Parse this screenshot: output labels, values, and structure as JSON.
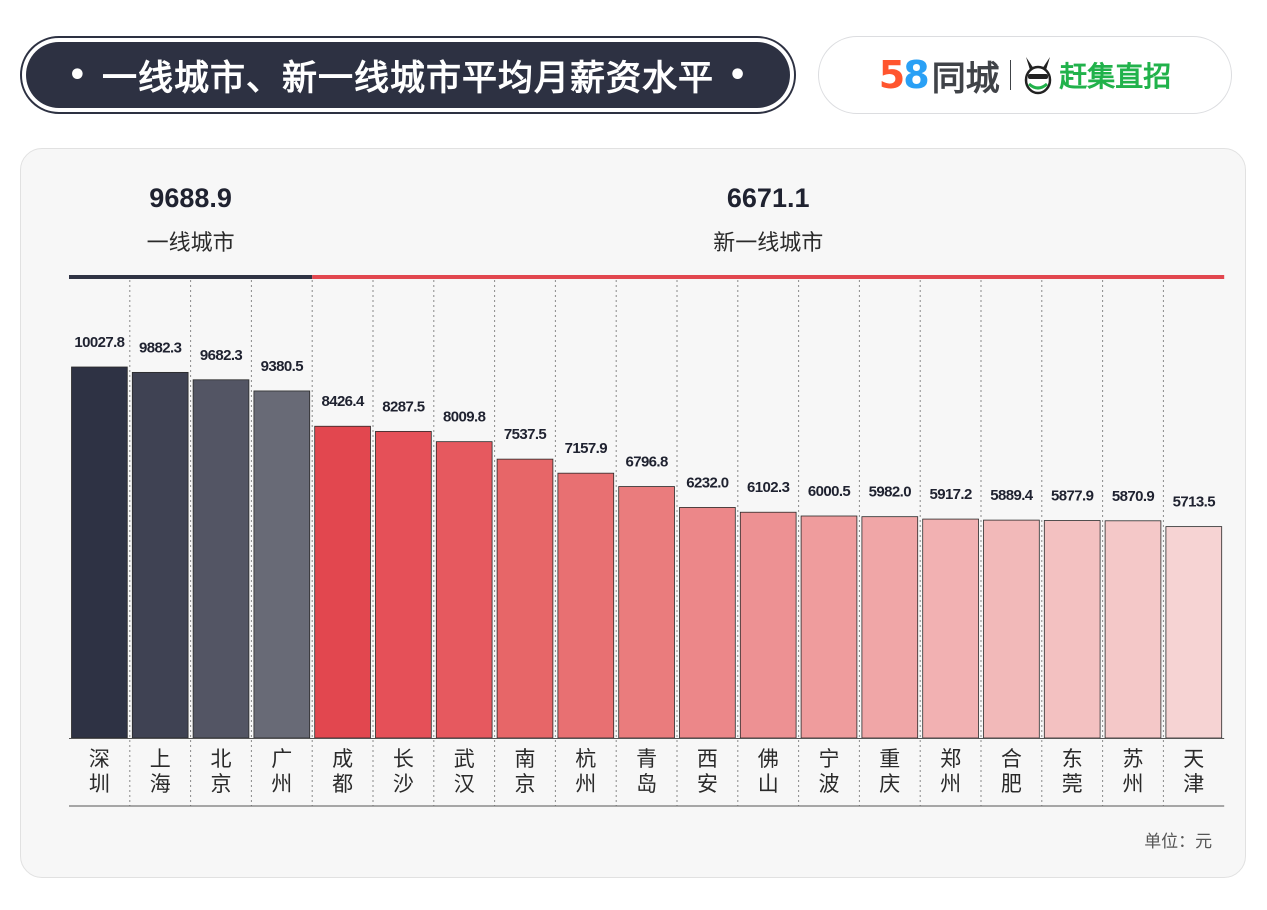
{
  "header": {
    "title": "一线城市、新一线城市平均月薪资水平",
    "title_dot": "•"
  },
  "logo": {
    "digit_5": "5",
    "digit_8": "8",
    "brand_text": "同城",
    "partner_text": "赶集直招",
    "icon": "ganji-donkey-icon"
  },
  "chart_data": {
    "type": "bar",
    "categories": [
      "深圳",
      "上海",
      "北京",
      "广州",
      "成都",
      "长沙",
      "武汉",
      "南京",
      "杭州",
      "青岛",
      "西安",
      "佛山",
      "宁波",
      "重庆",
      "郑州",
      "合肥",
      "东莞",
      "苏州",
      "天津"
    ],
    "values": [
      10027.8,
      9882.3,
      9682.3,
      9380.5,
      8426.4,
      8287.5,
      8009.8,
      7537.5,
      7157.9,
      6796.8,
      6232.0,
      6102.3,
      6000.5,
      5982.0,
      5917.2,
      5889.4,
      5877.9,
      5870.9,
      5713.5
    ],
    "value_labels": [
      "10027.8",
      "9882.3",
      "9682.3",
      "9380.5",
      "8426.4",
      "8287.5",
      "8009.8",
      "7537.5",
      "7157.9",
      "6796.8",
      "6232.0",
      "6102.3",
      "6000.5",
      "5982.0",
      "5917.2",
      "5889.4",
      "5877.9",
      "5870.9",
      "5713.5"
    ],
    "groups": [
      {
        "label": "一线城市",
        "value": "9688.9",
        "count": 4,
        "color": "#2f3344"
      },
      {
        "label": "新一线城市",
        "value": "6671.1",
        "count": 15,
        "color": "#e2474f"
      }
    ],
    "bar_colors": [
      "#2e3244",
      "#3f4253",
      "#535564",
      "#686a76",
      "#e2474f",
      "#e55058",
      "#e6595f",
      "#e76668",
      "#e87072",
      "#ea7c7d",
      "#ec8789",
      "#ed9193",
      "#ef9c9d",
      "#f0a6a7",
      "#f2b1b2",
      "#f2b9b9",
      "#f3c1c1",
      "#f4c8c8",
      "#f6d3d3"
    ],
    "unit": "单位：元",
    "title": "一线城市、新一线城市平均月薪资水平",
    "grid": false,
    "legend": "none"
  }
}
